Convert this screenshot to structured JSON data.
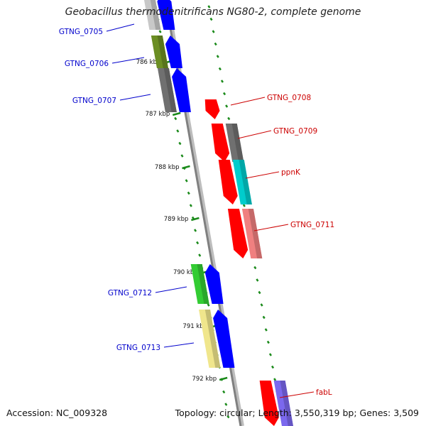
{
  "title": "Geobacillus thermodenitrificans NG80-2, complete genome",
  "accession": "Accession: NC_009328",
  "summary": "Topology: circular; Length: 3,550,319 bp; Genes: 3,509",
  "colors": {
    "forward_label": "#0000cc",
    "reverse_label": "#cc0000",
    "backbone": "#808080",
    "tick": "#1a8a1a"
  },
  "kbp_marks": [
    "786 kbp",
    "787 kbp",
    "788 kbp",
    "789 kbp",
    "790 kbp",
    "791 kbp",
    "792 kbp"
  ],
  "genes": [
    {
      "label": "GTNG_0705",
      "strand": "forward",
      "cog_color": "#c8c8c8",
      "arrow_color": "#0000ff"
    },
    {
      "label": "GTNG_0706",
      "strand": "forward",
      "cog_color": "#6b8e23",
      "arrow_color": "#0000ff"
    },
    {
      "label": "GTNG_0707",
      "strand": "forward",
      "cog_color": "#707070",
      "arrow_color": "#0000ff"
    },
    {
      "label": "GTNG_0708",
      "strand": "reverse",
      "cog_color": "",
      "arrow_color": "#ff0000"
    },
    {
      "label": "GTNG_0709",
      "strand": "reverse",
      "cog_color": "#707070",
      "arrow_color": "#ff0000"
    },
    {
      "label": "ppnK",
      "strand": "reverse",
      "cog_color": "#00cccc",
      "arrow_color": "#ff0000"
    },
    {
      "label": "GTNG_0711",
      "strand": "reverse",
      "cog_color": "#f08080",
      "arrow_color": "#ff0000"
    },
    {
      "label": "GTNG_0712",
      "strand": "forward",
      "cog_color": "#33cc33",
      "arrow_color": "#0000ff"
    },
    {
      "label": "GTNG_0713",
      "strand": "forward",
      "cog_color": "#f0e68c",
      "arrow_color": "#0000ff"
    },
    {
      "label": "fabL",
      "strand": "reverse",
      "cog_color": "#7b68ee",
      "arrow_color": "#ff0000"
    }
  ]
}
